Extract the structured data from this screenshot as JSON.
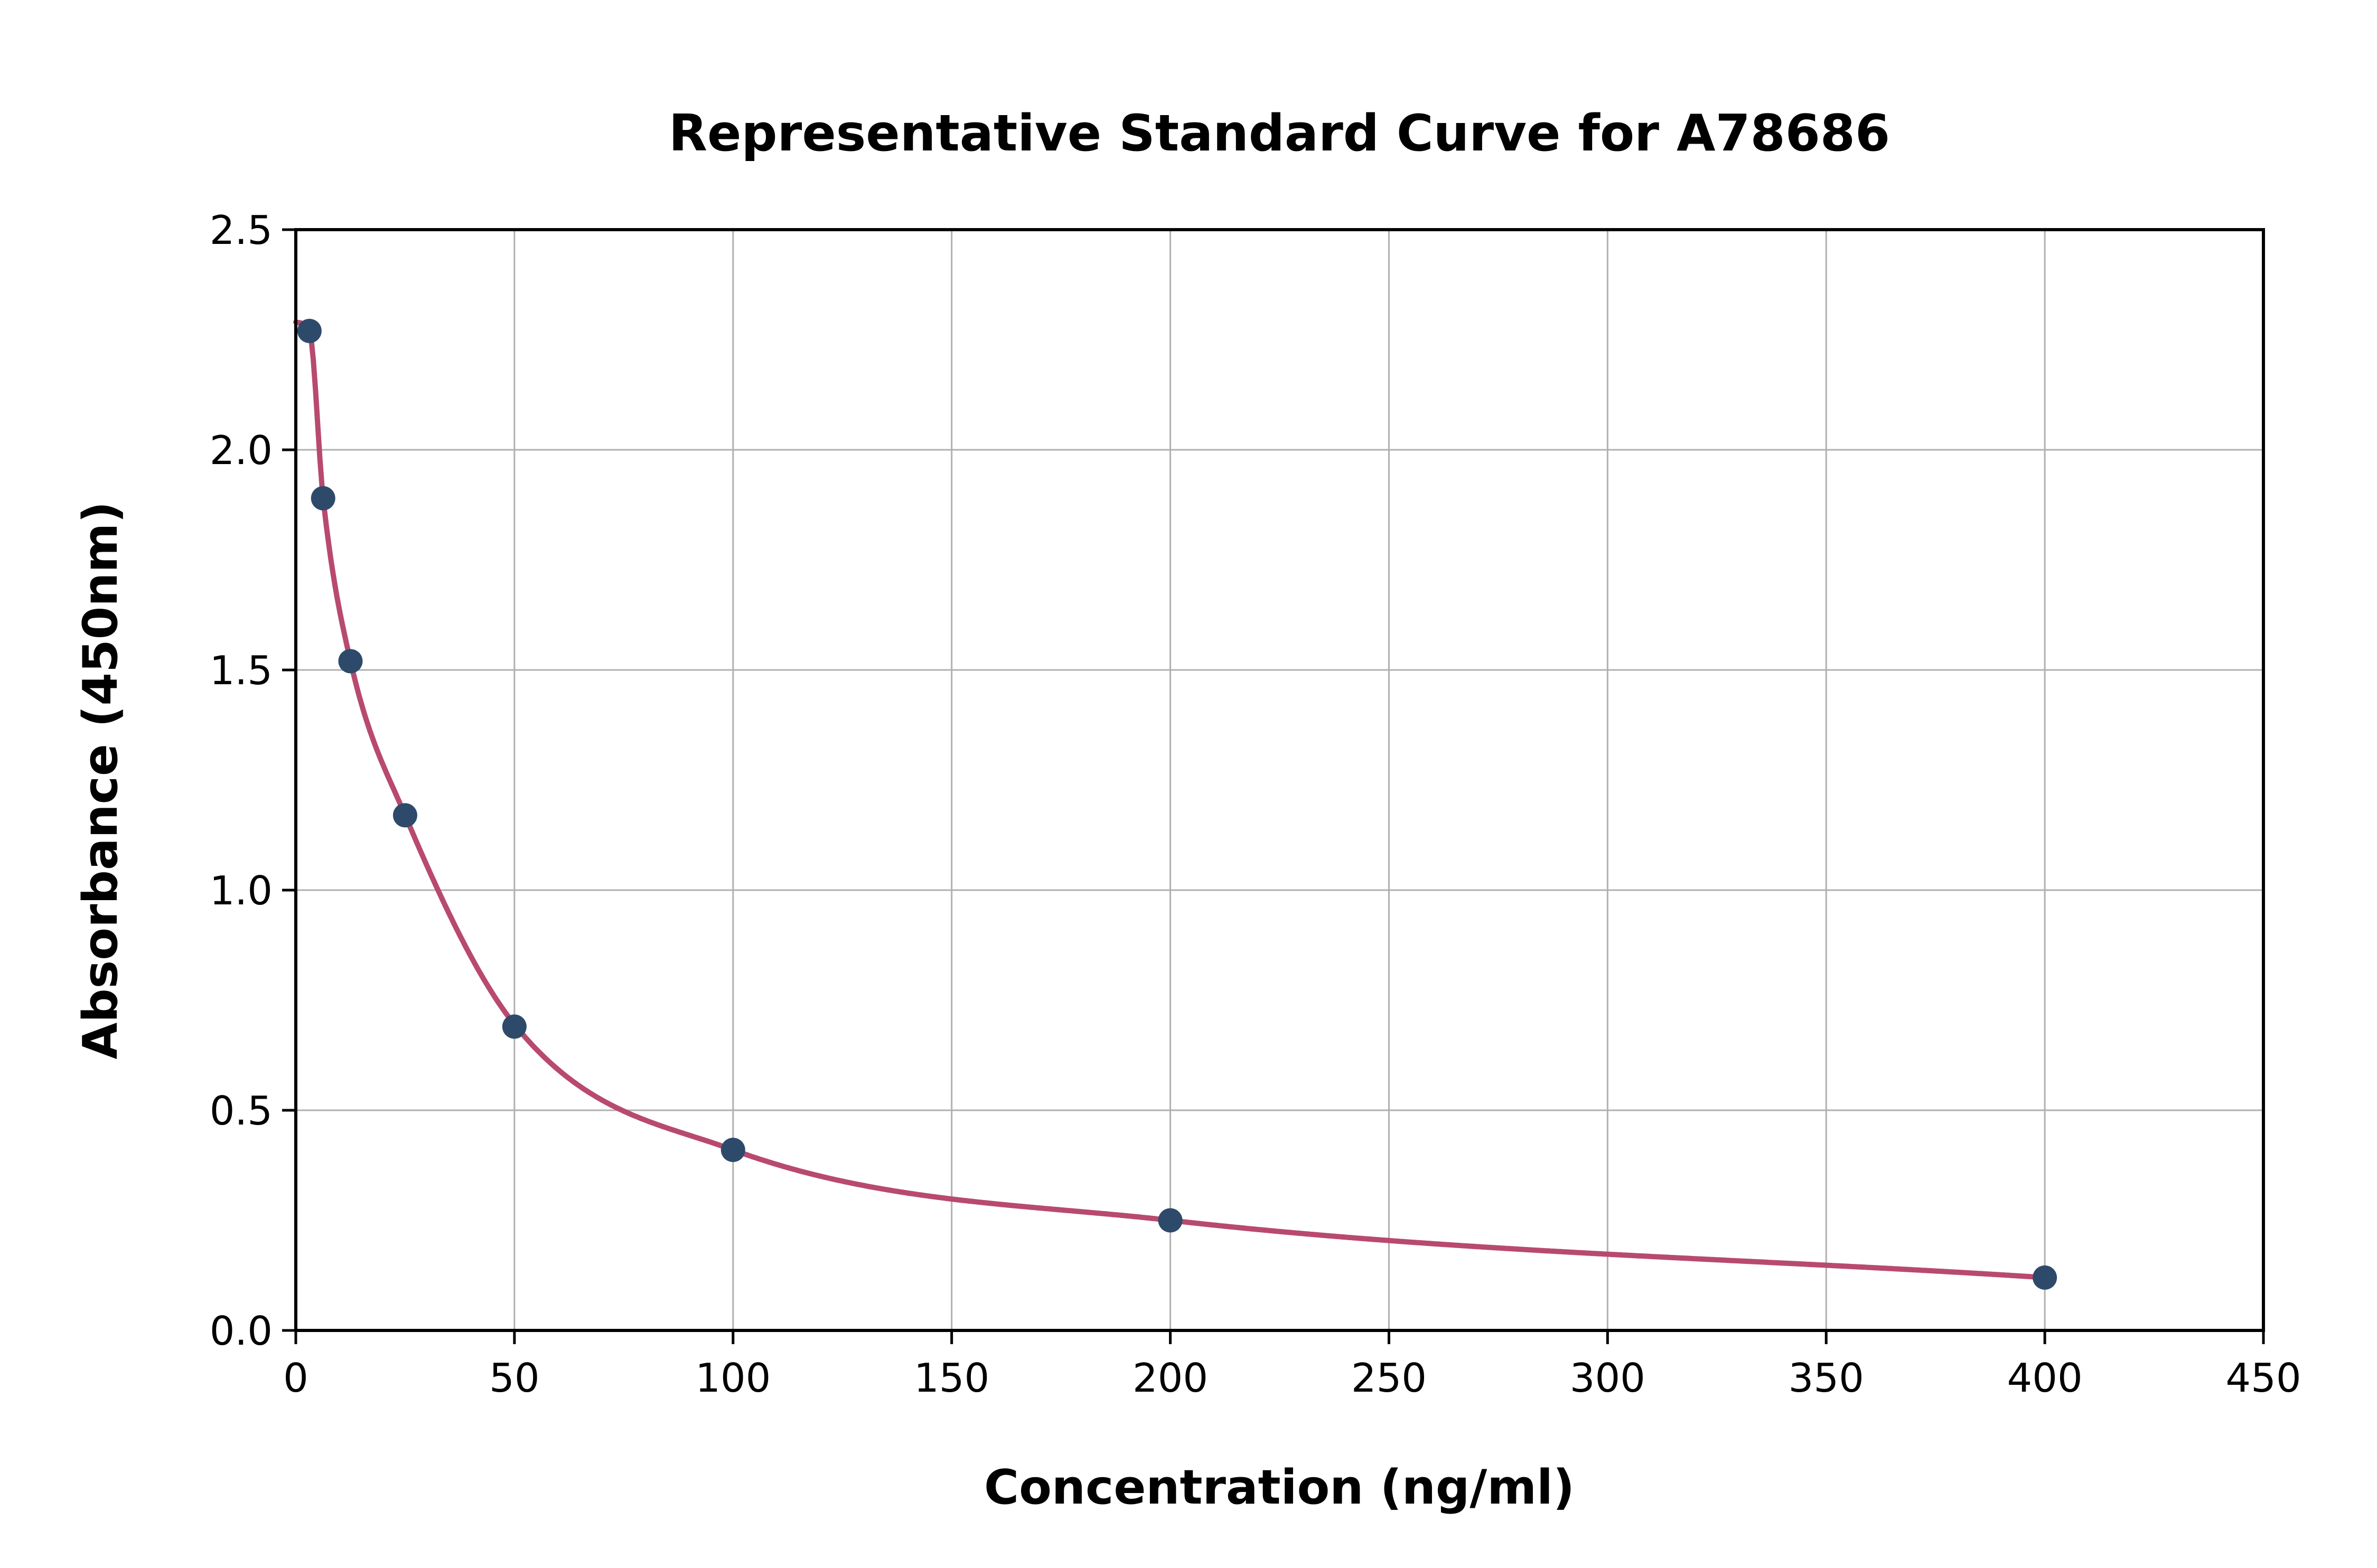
{
  "chart_data": {
    "type": "scatter",
    "title": "Representative Standard Curve for A78686",
    "xlabel": "Concentration (ng/ml)",
    "ylabel": "Absorbance (450nm)",
    "xlim": [
      0,
      450
    ],
    "ylim": [
      0,
      2.5
    ],
    "xticks": [
      0,
      50,
      100,
      150,
      200,
      250,
      300,
      350,
      400,
      450
    ],
    "xtick_labels": [
      "0",
      "50",
      "100",
      "150",
      "200",
      "250",
      "300",
      "350",
      "400",
      "450"
    ],
    "yticks": [
      0,
      0.5,
      1,
      1.5,
      2,
      2.5
    ],
    "ytick_labels": [
      "0.0",
      "0.5",
      "1.0",
      "1.5",
      "2.0",
      "2.5"
    ],
    "grid": true,
    "legend": "none",
    "points": {
      "name": "standards",
      "x": [
        3.125,
        6.25,
        12.5,
        25,
        50,
        100,
        200,
        400
      ],
      "y": [
        2.27,
        1.89,
        1.52,
        1.17,
        0.69,
        0.41,
        0.25,
        0.12
      ]
    },
    "curve": {
      "name": "4pl-fit-curve",
      "x_start": 0,
      "x_end": 400,
      "through": [
        [
          0,
          2.29
        ],
        [
          3.125,
          2.27
        ],
        [
          6.25,
          1.89
        ],
        [
          12.5,
          1.52
        ],
        [
          25,
          1.17
        ],
        [
          50,
          0.695
        ],
        [
          100,
          0.41
        ],
        [
          200,
          0.25
        ],
        [
          400,
          0.12
        ]
      ]
    },
    "colors": {
      "point": "#2e4a6b",
      "curve": "#b84a6e",
      "grid": "#b0b0b0",
      "axis": "#000000",
      "background": "#ffffff"
    }
  }
}
